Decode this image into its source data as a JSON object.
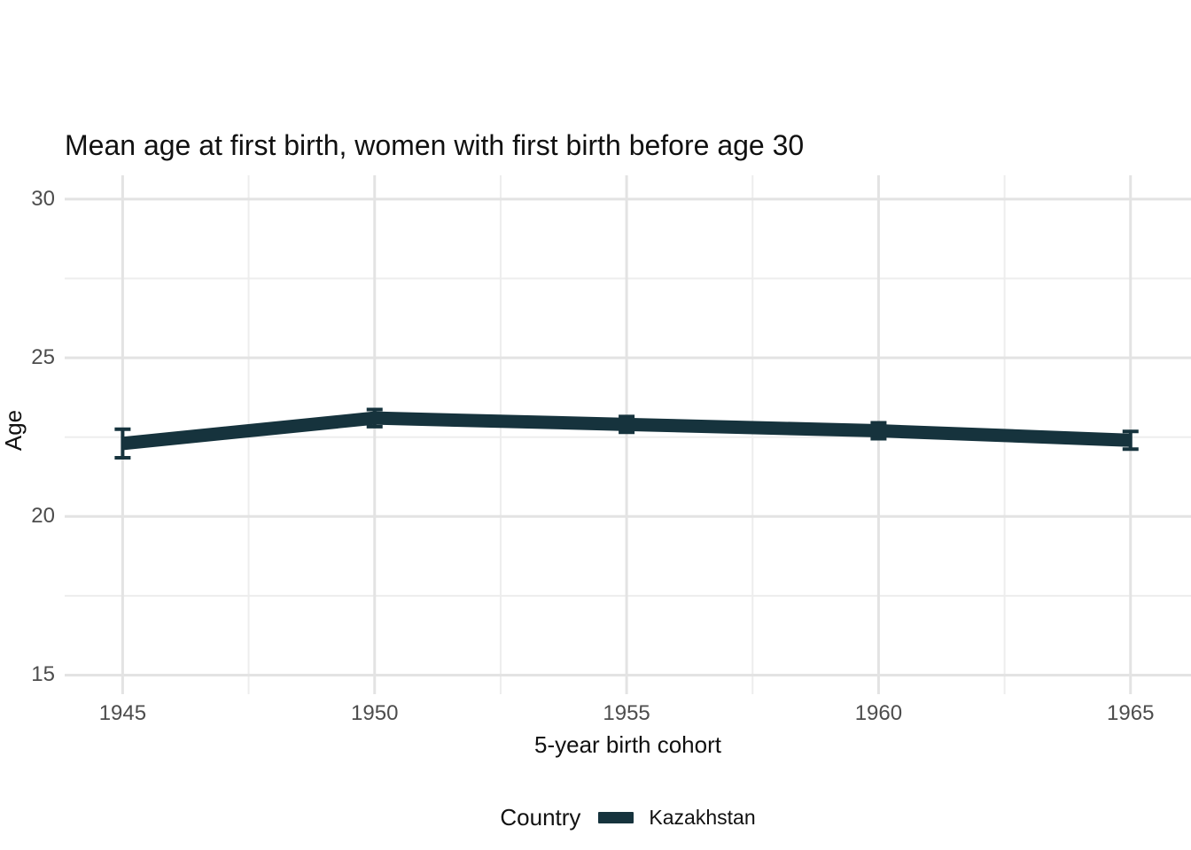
{
  "chart_data": {
    "type": "line",
    "title": "Mean age at first birth, women with first birth before age 30",
    "xlabel": "5-year birth cohort",
    "ylabel": "Age",
    "legend_title": "Country",
    "legend_position": "bottom",
    "grid": true,
    "x": [
      1945,
      1950,
      1955,
      1960,
      1965
    ],
    "x_tick_labels": [
      "1945",
      "1950",
      "1955",
      "1960",
      "1965"
    ],
    "x_minor_ticks": [
      1947.5,
      1952.5,
      1957.5,
      1962.5
    ],
    "y_ticks": [
      15,
      20,
      25,
      30
    ],
    "y_minor_ticks": [
      17.5,
      22.5,
      27.5
    ],
    "xlim": [
      1943.85,
      1966.2
    ],
    "ylim": [
      14.4,
      30.75
    ],
    "series": [
      {
        "name": "Kazakhstan",
        "color": "#16333d",
        "values": [
          22.3,
          23.1,
          22.9,
          22.7,
          22.4
        ],
        "error_margins": [
          0.45,
          0.27,
          0.25,
          0.25,
          0.28
        ]
      }
    ],
    "colors": {
      "background": "#ffffff",
      "grid_major": "#e3e3e3",
      "grid_minor": "#ededed",
      "title_text": "#111111",
      "axis_title_text": "#111111",
      "tick_text": "#4d4d4d"
    }
  }
}
